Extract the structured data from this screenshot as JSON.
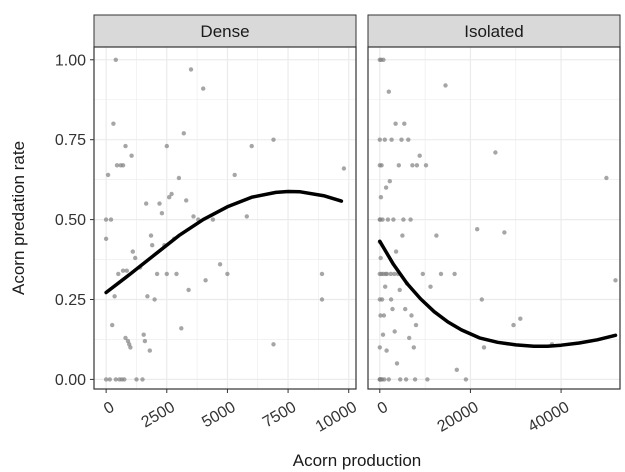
{
  "chart_data": {
    "type": "scatter",
    "xlabel": "Acorn production",
    "ylabel": "Acorn predation rate",
    "ylim": [
      -0.03,
      1.04
    ],
    "y_ticks": [
      0,
      0.25,
      0.5,
      0.75,
      1
    ],
    "y_tick_labels": [
      "0.00",
      "0.25",
      "0.50",
      "0.75",
      "1.00"
    ],
    "grid": true,
    "colors": {
      "point": "#808080",
      "curve": "#000000",
      "strip_bg": "#d9d9d9",
      "grid": "#ebebeb",
      "frame": "#333333"
    },
    "panels": [
      {
        "strip": "Dense",
        "xlim": [
          -500,
          10300
        ],
        "x_ticks": [
          0,
          2500,
          5000,
          7500,
          10000
        ],
        "x_tick_labels": [
          "0",
          "2500",
          "5000",
          "7500",
          "10000"
        ],
        "points": [
          [
            0,
            0.44
          ],
          [
            0,
            0.5
          ],
          [
            0,
            0.0
          ],
          [
            80,
            0.64
          ],
          [
            150,
            0.0
          ],
          [
            200,
            0.5
          ],
          [
            250,
            0.17
          ],
          [
            300,
            0.8
          ],
          [
            350,
            0.26
          ],
          [
            400,
            1.0
          ],
          [
            400,
            0.0
          ],
          [
            450,
            0.67
          ],
          [
            500,
            0.33
          ],
          [
            550,
            0.0
          ],
          [
            600,
            0.67
          ],
          [
            650,
            0.0
          ],
          [
            700,
            0.34
          ],
          [
            700,
            0.67
          ],
          [
            750,
            0.0
          ],
          [
            800,
            0.73
          ],
          [
            800,
            0.13
          ],
          [
            850,
            0.34
          ],
          [
            900,
            0.12
          ],
          [
            950,
            0.11
          ],
          [
            1000,
            0.1
          ],
          [
            1050,
            0.7
          ],
          [
            1100,
            0.4
          ],
          [
            1200,
            0.38
          ],
          [
            1250,
            0.0
          ],
          [
            1400,
            0.35
          ],
          [
            1500,
            0.0
          ],
          [
            1550,
            0.14
          ],
          [
            1600,
            0.12
          ],
          [
            1650,
            0.55
          ],
          [
            1700,
            0.26
          ],
          [
            1800,
            0.09
          ],
          [
            1850,
            0.45
          ],
          [
            1900,
            0.42
          ],
          [
            2000,
            0.25
          ],
          [
            2100,
            0.33
          ],
          [
            2200,
            0.55
          ],
          [
            2300,
            0.52
          ],
          [
            2400,
            0.42
          ],
          [
            2500,
            0.73
          ],
          [
            2500,
            0.33
          ],
          [
            2600,
            0.57
          ],
          [
            2700,
            0.58
          ],
          [
            2800,
            0.44
          ],
          [
            2900,
            0.33
          ],
          [
            3000,
            0.63
          ],
          [
            3100,
            0.16
          ],
          [
            3200,
            0.77
          ],
          [
            3300,
            0.56
          ],
          [
            3400,
            0.28
          ],
          [
            3500,
            0.97
          ],
          [
            3600,
            0.51
          ],
          [
            3800,
            0.5
          ],
          [
            4000,
            0.91
          ],
          [
            4100,
            0.31
          ],
          [
            4400,
            0.5
          ],
          [
            4700,
            0.36
          ],
          [
            5000,
            0.33
          ],
          [
            5300,
            0.64
          ],
          [
            5800,
            0.51
          ],
          [
            6000,
            0.73
          ],
          [
            6900,
            0.11
          ],
          [
            6900,
            0.75
          ],
          [
            8900,
            0.33
          ],
          [
            8900,
            0.25
          ],
          [
            9800,
            0.66
          ]
        ],
        "curve": [
          [
            0,
            0.272
          ],
          [
            1000,
            0.33
          ],
          [
            2000,
            0.39
          ],
          [
            3000,
            0.45
          ],
          [
            4000,
            0.5
          ],
          [
            5000,
            0.54
          ],
          [
            6000,
            0.57
          ],
          [
            7000,
            0.585
          ],
          [
            7500,
            0.588
          ],
          [
            8000,
            0.587
          ],
          [
            9000,
            0.574
          ],
          [
            9700,
            0.558
          ]
        ]
      },
      {
        "strip": "Isolated",
        "xlim": [
          -2600,
          53000
        ],
        "x_ticks": [
          0,
          20000,
          40000
        ],
        "x_tick_labels": [
          "0",
          "20000",
          "40000"
        ],
        "points": [
          [
            0,
            1.0
          ],
          [
            0,
            0.5
          ],
          [
            0,
            0.0
          ],
          [
            0,
            0.33
          ],
          [
            0,
            0.25
          ],
          [
            0,
            0.67
          ],
          [
            0,
            0.75
          ],
          [
            0,
            0.0
          ],
          [
            0,
            0.1
          ],
          [
            0,
            0.43
          ],
          [
            100,
            0.0
          ],
          [
            100,
            0.5
          ],
          [
            150,
            0.2
          ],
          [
            200,
            0.38
          ],
          [
            250,
            0.57
          ],
          [
            300,
            1.0
          ],
          [
            300,
            0.0
          ],
          [
            350,
            0.33
          ],
          [
            400,
            0.67
          ],
          [
            500,
            0.25
          ],
          [
            500,
            0.0
          ],
          [
            600,
            0.5
          ],
          [
            700,
            0.14
          ],
          [
            800,
            1.0
          ],
          [
            800,
            0.33
          ],
          [
            900,
            0.2
          ],
          [
            1000,
            0.0
          ],
          [
            1100,
            0.75
          ],
          [
            1200,
            0.29
          ],
          [
            1300,
            0.33
          ],
          [
            1400,
            0.6
          ],
          [
            1500,
            0.09
          ],
          [
            1600,
            0.33
          ],
          [
            1800,
            0.5
          ],
          [
            2000,
            0.0
          ],
          [
            2000,
            0.9
          ],
          [
            2200,
            0.62
          ],
          [
            2400,
            0.33
          ],
          [
            2500,
            0.25
          ],
          [
            2600,
            0.75
          ],
          [
            2800,
            0.22
          ],
          [
            3000,
            0.5
          ],
          [
            3200,
            0.33
          ],
          [
            3300,
            0.15
          ],
          [
            3500,
            0.8
          ],
          [
            3600,
            0.4
          ],
          [
            3800,
            0.05
          ],
          [
            4000,
            0.33
          ],
          [
            4200,
            0.67
          ],
          [
            4400,
            0.28
          ],
          [
            4500,
            0.0
          ],
          [
            4800,
            0.75
          ],
          [
            5000,
            0.45
          ],
          [
            5200,
            0.5
          ],
          [
            5400,
            0.8
          ],
          [
            5600,
            0.22
          ],
          [
            5800,
            0.0
          ],
          [
            6000,
            0.3
          ],
          [
            6300,
            0.75
          ],
          [
            6500,
            0.13
          ],
          [
            6800,
            0.5
          ],
          [
            7000,
            0.2
          ],
          [
            7200,
            0.67
          ],
          [
            7500,
            0.1
          ],
          [
            7800,
            0.0
          ],
          [
            8000,
            0.17
          ],
          [
            8200,
            0.67
          ],
          [
            8800,
            0.7
          ],
          [
            9500,
            0.33
          ],
          [
            10200,
            0.67
          ],
          [
            10500,
            0.0
          ],
          [
            11200,
            0.29
          ],
          [
            12500,
            0.45
          ],
          [
            13500,
            0.33
          ],
          [
            14500,
            0.92
          ],
          [
            16500,
            0.33
          ],
          [
            17000,
            0.03
          ],
          [
            19000,
            0.0
          ],
          [
            21500,
            0.47
          ],
          [
            22500,
            0.25
          ],
          [
            23000,
            0.1
          ],
          [
            25500,
            0.71
          ],
          [
            27500,
            0.46
          ],
          [
            29500,
            0.17
          ],
          [
            31000,
            0.19
          ],
          [
            38000,
            0.11
          ],
          [
            50000,
            0.63
          ],
          [
            52000,
            0.31
          ]
        ],
        "curve": [
          [
            0,
            0.432
          ],
          [
            3000,
            0.36
          ],
          [
            6000,
            0.3
          ],
          [
            9000,
            0.252
          ],
          [
            12000,
            0.212
          ],
          [
            15000,
            0.18
          ],
          [
            18000,
            0.155
          ],
          [
            22000,
            0.13
          ],
          [
            26000,
            0.116
          ],
          [
            30000,
            0.108
          ],
          [
            34000,
            0.104
          ],
          [
            37000,
            0.104
          ],
          [
            40000,
            0.107
          ],
          [
            44000,
            0.114
          ],
          [
            48000,
            0.124
          ],
          [
            52000,
            0.138
          ]
        ]
      }
    ]
  }
}
